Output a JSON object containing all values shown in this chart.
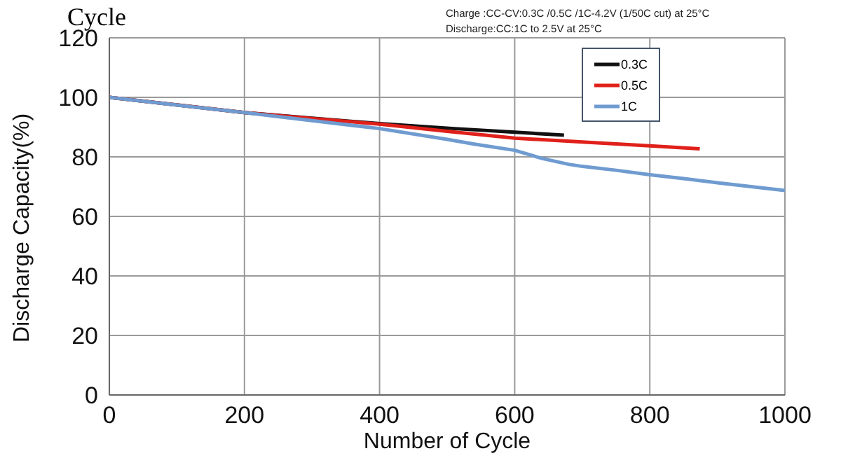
{
  "chart_data": {
    "type": "line",
    "title": "Cycle",
    "xlabel": "Number of Cycle",
    "ylabel": "Discharge Capacity(%)",
    "annotations": [
      "Charge :CC-CV:0.3C /0.5C /1C-4.2V (1/50C cut) at 25°C",
      "Discharge:CC:1C  to 2.5V at 25°C"
    ],
    "xlim": [
      0,
      1000
    ],
    "xticks": [
      0,
      200,
      400,
      600,
      800,
      1000
    ],
    "ylim": [
      0,
      120
    ],
    "yticks": [
      0,
      20,
      40,
      60,
      80,
      100,
      120
    ],
    "grid": true,
    "legend": "top right",
    "marker": "none",
    "line_style": "solid",
    "series": [
      {
        "name": "0.3C",
        "color": "#111111",
        "x": [
          0,
          200,
          300,
          400,
          511,
          600,
          673
        ],
        "values": [
          100,
          94.9,
          93,
          91.2,
          89.5,
          88.3,
          87.3
        ]
      },
      {
        "name": "0.5C",
        "color": "#e0201a",
        "x": [
          0,
          200,
          300,
          400,
          500,
          600,
          700,
          800,
          874
        ],
        "values": [
          100,
          94.9,
          92.9,
          91,
          88.6,
          86.3,
          85,
          83.7,
          82.7
        ]
      },
      {
        "name": "1C",
        "color": "#6f9bd0",
        "x": [
          0,
          100,
          200,
          300,
          400,
          500,
          540,
          600,
          640,
          680,
          700,
          750,
          800,
          850,
          900,
          950,
          1000
        ],
        "values": [
          100,
          97.4,
          94.9,
          92.2,
          89.5,
          85.9,
          84.3,
          82.2,
          79.5,
          77.5,
          76.8,
          75.5,
          74,
          72.7,
          71.3,
          70,
          68.7
        ]
      }
    ]
  }
}
